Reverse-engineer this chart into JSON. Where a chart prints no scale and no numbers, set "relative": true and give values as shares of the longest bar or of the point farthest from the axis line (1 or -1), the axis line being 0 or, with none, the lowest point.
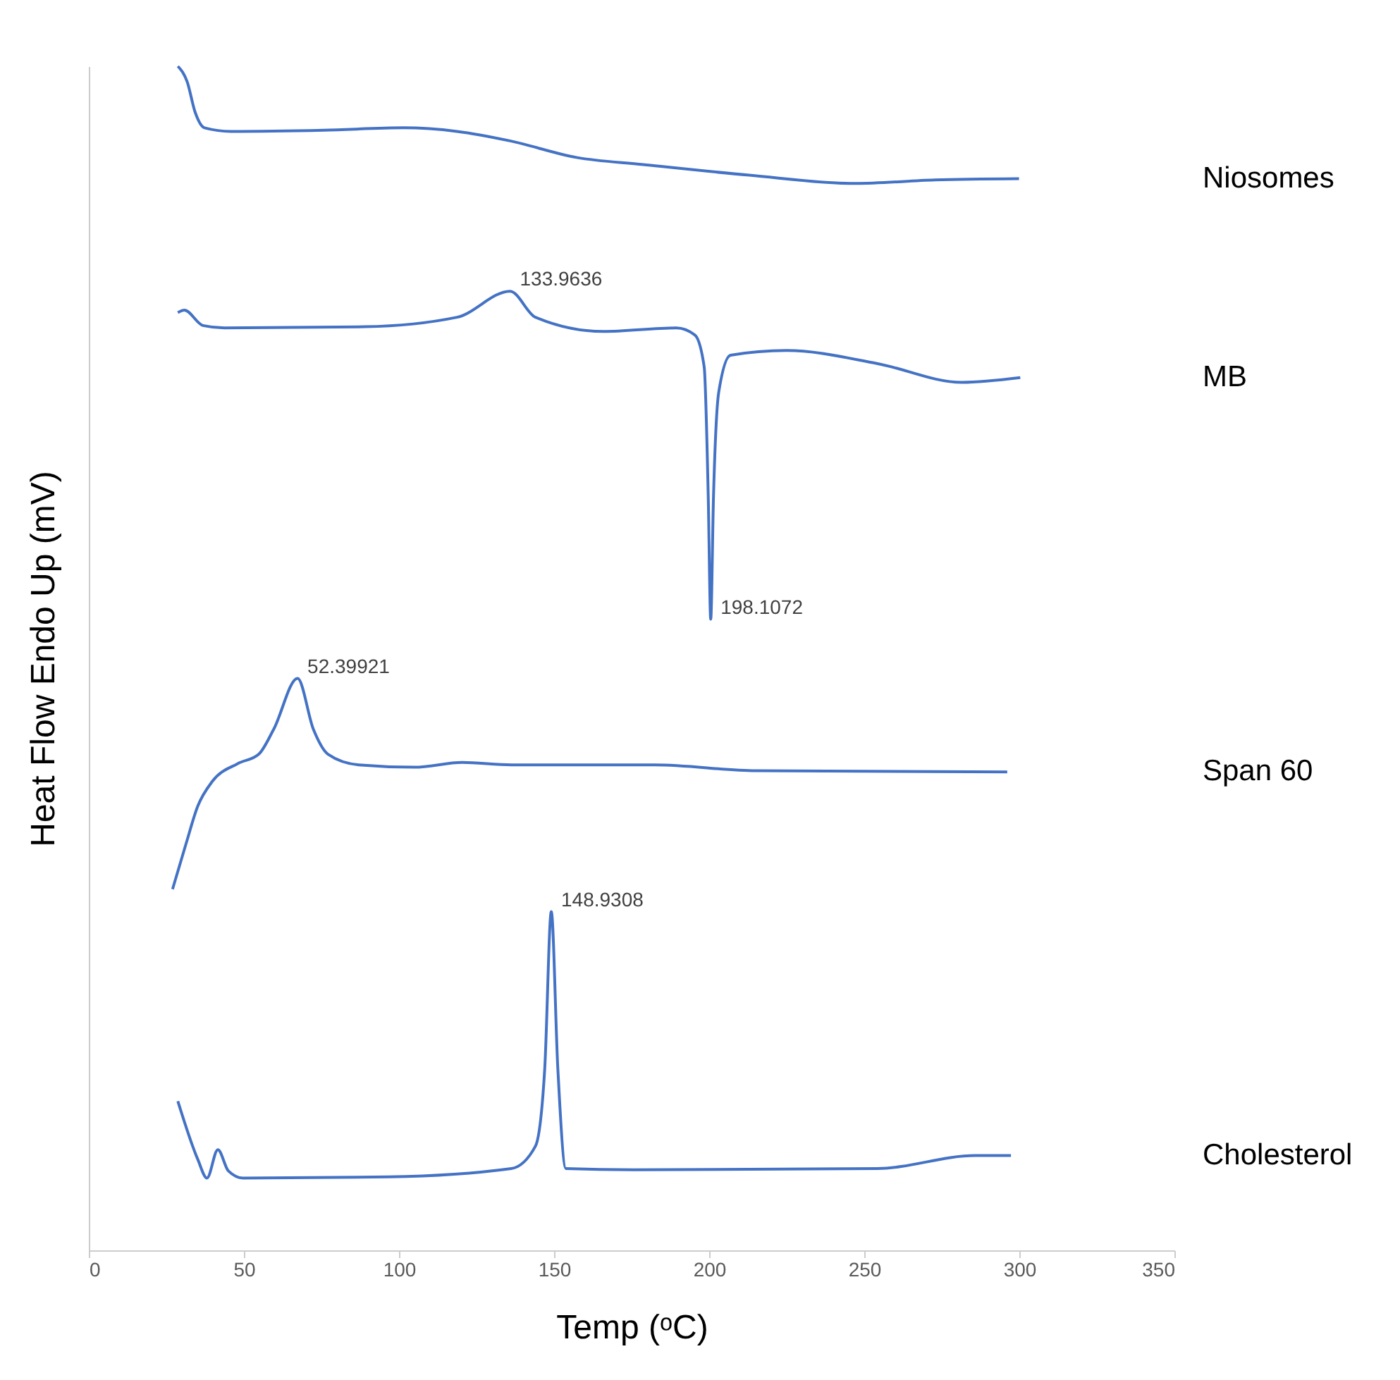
{
  "chart_data": {
    "type": "line",
    "relative": true,
    "xlabel": "Temp (ᵒC)",
    "ylabel": "Heat Flow Endo Up (mV)",
    "xlim": [
      0,
      350
    ],
    "xticks": [
      0,
      50,
      100,
      150,
      200,
      250,
      300,
      350
    ],
    "grid": false,
    "legend": false,
    "marker": "none",
    "line_style": "solid",
    "series": [
      {
        "name": "Niosomes",
        "color": "#4472c4",
        "x": [
          28.7,
          31.7,
          34.3,
          37.3,
          45.8,
          75.8,
          101.5,
          118.7,
          135.8,
          157.2,
          178.7,
          212.9,
          247.2,
          272.9,
          299.9
        ],
        "values": [
          1.0,
          0.987,
          0.961,
          0.948,
          0.945,
          0.946,
          0.948,
          0.945,
          0.937,
          0.923,
          0.917,
          0.908,
          0.901,
          0.904,
          0.905
        ]
      },
      {
        "name": "MB",
        "color": "#4472c4",
        "x": [
          28.7,
          30.8,
          36.8,
          43.7,
          89.1,
          118.7,
          135.8,
          144.0,
          165.8,
          189.4,
          195.4,
          198.4,
          199.7,
          200.5,
          201.4,
          203.1,
          206.9,
          224.9,
          254.1,
          281.5,
          300.3
        ],
        "values": [
          0.792,
          0.794,
          0.781,
          0.779,
          0.78,
          0.788,
          0.81,
          0.788,
          0.776,
          0.779,
          0.773,
          0.746,
          0.637,
          0.533,
          0.637,
          0.725,
          0.756,
          0.76,
          0.749,
          0.733,
          0.737
        ]
      },
      {
        "name": "Span 60",
        "color": "#4472c4",
        "x": [
          27.0,
          31.3,
          35.1,
          39.8,
          48.0,
          54.8,
          59.6,
          67.3,
          72.4,
          77.1,
          87.0,
          105.0,
          120.4,
          136.2,
          182.5,
          215.1,
          296.1
        ],
        "values": [
          0.305,
          0.343,
          0.375,
          0.396,
          0.411,
          0.419,
          0.44,
          0.483,
          0.44,
          0.419,
          0.41,
          0.408,
          0.412,
          0.41,
          0.41,
          0.405,
          0.404
        ]
      },
      {
        "name": "Cholesterol",
        "color": "#4472c4",
        "x": [
          28.7,
          35.1,
          38.1,
          41.6,
          45.0,
          49.7,
          96.8,
          136.2,
          144.0,
          147.0,
          149.1,
          151.2,
          153.8,
          175.7,
          254.1,
          285.8,
          297.3
        ],
        "values": [
          0.126,
          0.077,
          0.061,
          0.085,
          0.067,
          0.061,
          0.062,
          0.069,
          0.088,
          0.154,
          0.286,
          0.154,
          0.069,
          0.068,
          0.069,
          0.08,
          0.08
        ]
      }
    ],
    "annotations": [
      {
        "text": "133.9636",
        "x": 135.8,
        "y": 0.81
      },
      {
        "text": "198.1072",
        "x": 200.5,
        "y": 0.533
      },
      {
        "text": "52.39921",
        "x": 67.3,
        "y": 0.483
      },
      {
        "text": "148.9308",
        "x": 149.1,
        "y": 0.286
      }
    ]
  }
}
